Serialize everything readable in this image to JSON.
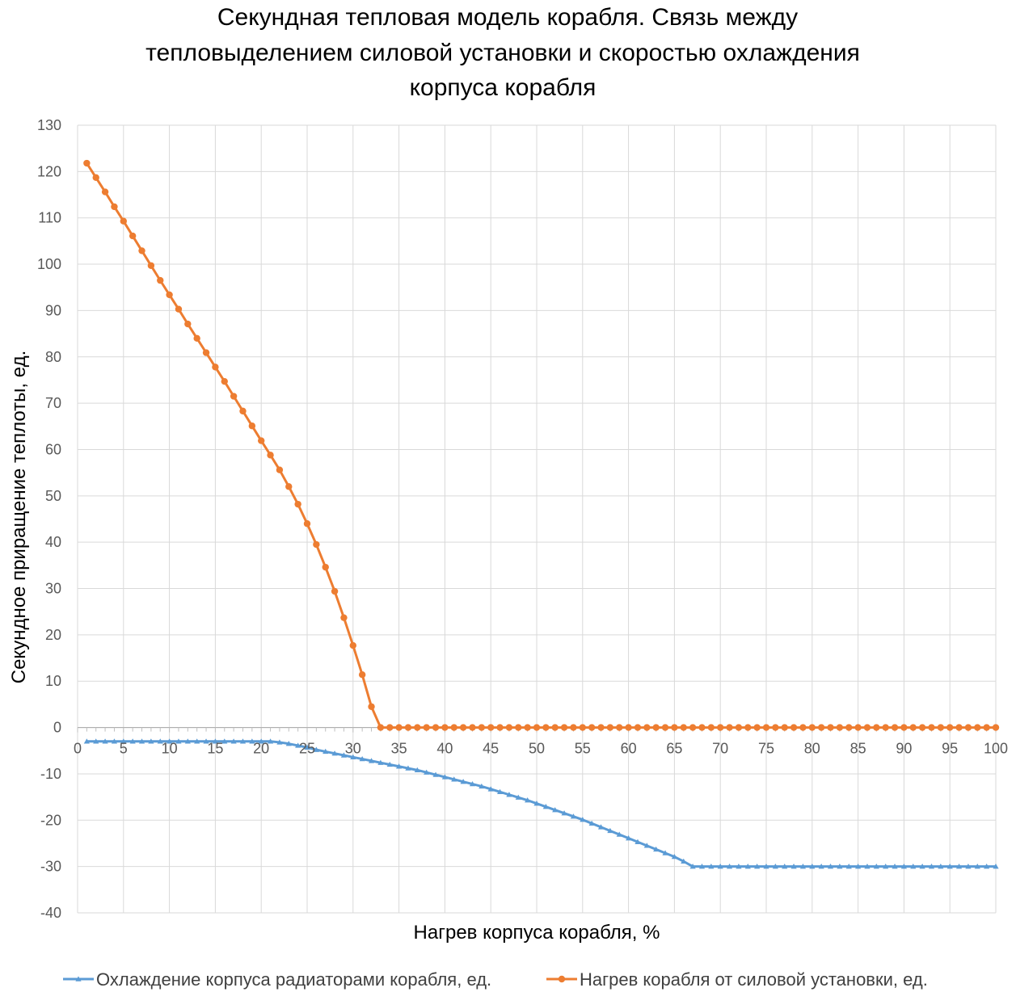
{
  "chart_data": {
    "type": "line",
    "title_lines": [
      "Секундная тепловая модель корабля. Связь между",
      "тепловыделением силовой установки и скоростью охлаждения",
      "корпуса корабля"
    ],
    "xlabel": "Нагрев корпуса корабля, %",
    "ylabel": "Секундное приращение теплоты, ед.",
    "xlim": [
      0,
      100
    ],
    "ylim": [
      -40,
      130
    ],
    "x_ticks": [
      0,
      5,
      10,
      15,
      20,
      25,
      30,
      35,
      40,
      45,
      50,
      55,
      60,
      65,
      70,
      75,
      80,
      85,
      90,
      95,
      100
    ],
    "y_ticks": [
      130,
      120,
      110,
      100,
      90,
      80,
      70,
      60,
      50,
      40,
      30,
      20,
      10,
      0,
      -10,
      -20,
      -30,
      -40
    ],
    "grid": true,
    "legend_position": "bottom",
    "series": [
      {
        "name": "Охлаждение корпуса радиаторами корабля, ед.",
        "color": "#5b9bd5",
        "marker": "triangle",
        "points": [
          [
            1,
            -3
          ],
          [
            2,
            -3
          ],
          [
            3,
            -3
          ],
          [
            4,
            -3
          ],
          [
            5,
            -3
          ],
          [
            6,
            -3
          ],
          [
            7,
            -3
          ],
          [
            8,
            -3
          ],
          [
            9,
            -3
          ],
          [
            10,
            -3
          ],
          [
            11,
            -3
          ],
          [
            12,
            -3
          ],
          [
            13,
            -3
          ],
          [
            14,
            -3
          ],
          [
            15,
            -3
          ],
          [
            16,
            -3
          ],
          [
            17,
            -3
          ],
          [
            18,
            -3
          ],
          [
            19,
            -3
          ],
          [
            20,
            -3
          ],
          [
            21,
            -3
          ],
          [
            22,
            -3.2
          ],
          [
            23,
            -3.5
          ],
          [
            24,
            -3.9
          ],
          [
            25,
            -4.3
          ],
          [
            26,
            -4.8
          ],
          [
            27,
            -5.2
          ],
          [
            28,
            -5.6
          ],
          [
            29,
            -6
          ],
          [
            30,
            -6.4
          ],
          [
            31,
            -6.8
          ],
          [
            32,
            -7.2
          ],
          [
            33,
            -7.6
          ],
          [
            34,
            -8
          ],
          [
            35,
            -8.4
          ],
          [
            36,
            -8.8
          ],
          [
            37,
            -9.2
          ],
          [
            38,
            -9.7
          ],
          [
            39,
            -10.2
          ],
          [
            40,
            -10.7
          ],
          [
            41,
            -11.2
          ],
          [
            42,
            -11.7
          ],
          [
            43,
            -12.2
          ],
          [
            44,
            -12.7
          ],
          [
            45,
            -13.3
          ],
          [
            46,
            -13.9
          ],
          [
            47,
            -14.5
          ],
          [
            48,
            -15.1
          ],
          [
            49,
            -15.7
          ],
          [
            50,
            -16.4
          ],
          [
            51,
            -17.1
          ],
          [
            52,
            -17.8
          ],
          [
            53,
            -18.5
          ],
          [
            54,
            -19.2
          ],
          [
            55,
            -19.9
          ],
          [
            56,
            -20.7
          ],
          [
            57,
            -21.5
          ],
          [
            58,
            -22.3
          ],
          [
            59,
            -23.1
          ],
          [
            60,
            -23.9
          ],
          [
            61,
            -24.7
          ],
          [
            62,
            -25.5
          ],
          [
            63,
            -26.3
          ],
          [
            64,
            -27.1
          ],
          [
            65,
            -27.9
          ],
          [
            66,
            -28.9
          ],
          [
            67,
            -30
          ],
          [
            68,
            -30
          ],
          [
            69,
            -30
          ],
          [
            70,
            -30
          ],
          [
            71,
            -30
          ],
          [
            72,
            -30
          ],
          [
            73,
            -30
          ],
          [
            74,
            -30
          ],
          [
            75,
            -30
          ],
          [
            76,
            -30
          ],
          [
            77,
            -30
          ],
          [
            78,
            -30
          ],
          [
            79,
            -30
          ],
          [
            80,
            -30
          ],
          [
            81,
            -30
          ],
          [
            82,
            -30
          ],
          [
            83,
            -30
          ],
          [
            84,
            -30
          ],
          [
            85,
            -30
          ],
          [
            86,
            -30
          ],
          [
            87,
            -30
          ],
          [
            88,
            -30
          ],
          [
            89,
            -30
          ],
          [
            90,
            -30
          ],
          [
            91,
            -30
          ],
          [
            92,
            -30
          ],
          [
            93,
            -30
          ],
          [
            94,
            -30
          ],
          [
            95,
            -30
          ],
          [
            96,
            -30
          ],
          [
            97,
            -30
          ],
          [
            98,
            -30
          ],
          [
            99,
            -30
          ],
          [
            100,
            -30
          ]
        ]
      },
      {
        "name": "Нагрев корабля от силовой установки, ед.",
        "color": "#ed7d31",
        "marker": "circle",
        "points": [
          [
            1,
            121.8
          ],
          [
            2,
            118.7
          ],
          [
            3,
            115.6
          ],
          [
            4,
            112.4
          ],
          [
            5,
            109.3
          ],
          [
            6,
            106.1
          ],
          [
            7,
            102.9
          ],
          [
            8,
            99.7
          ],
          [
            9,
            96.5
          ],
          [
            10,
            93.4
          ],
          [
            11,
            90.3
          ],
          [
            12,
            87.1
          ],
          [
            13,
            84
          ],
          [
            14,
            80.9
          ],
          [
            15,
            77.8
          ],
          [
            16,
            74.7
          ],
          [
            17,
            71.5
          ],
          [
            18,
            68.3
          ],
          [
            19,
            65.1
          ],
          [
            20,
            61.9
          ],
          [
            21,
            58.8
          ],
          [
            22,
            55.6
          ],
          [
            23,
            52
          ],
          [
            24,
            48.2
          ],
          [
            25,
            44
          ],
          [
            26,
            39.5
          ],
          [
            27,
            34.6
          ],
          [
            28,
            29.4
          ],
          [
            29,
            23.7
          ],
          [
            30,
            17.7
          ],
          [
            31,
            11.4
          ],
          [
            32,
            4.5
          ],
          [
            33,
            0
          ],
          [
            34,
            0
          ],
          [
            35,
            0
          ],
          [
            36,
            0
          ],
          [
            37,
            0
          ],
          [
            38,
            0
          ],
          [
            39,
            0
          ],
          [
            40,
            0
          ],
          [
            41,
            0
          ],
          [
            42,
            0
          ],
          [
            43,
            0
          ],
          [
            44,
            0
          ],
          [
            45,
            0
          ],
          [
            46,
            0
          ],
          [
            47,
            0
          ],
          [
            48,
            0
          ],
          [
            49,
            0
          ],
          [
            50,
            0
          ],
          [
            51,
            0
          ],
          [
            52,
            0
          ],
          [
            53,
            0
          ],
          [
            54,
            0
          ],
          [
            55,
            0
          ],
          [
            56,
            0
          ],
          [
            57,
            0
          ],
          [
            58,
            0
          ],
          [
            59,
            0
          ],
          [
            60,
            0
          ],
          [
            61,
            0
          ],
          [
            62,
            0
          ],
          [
            63,
            0
          ],
          [
            64,
            0
          ],
          [
            65,
            0
          ],
          [
            66,
            0
          ],
          [
            67,
            0
          ],
          [
            68,
            0
          ],
          [
            69,
            0
          ],
          [
            70,
            0
          ],
          [
            71,
            0
          ],
          [
            72,
            0
          ],
          [
            73,
            0
          ],
          [
            74,
            0
          ],
          [
            75,
            0
          ],
          [
            76,
            0
          ],
          [
            77,
            0
          ],
          [
            78,
            0
          ],
          [
            79,
            0
          ],
          [
            80,
            0
          ],
          [
            81,
            0
          ],
          [
            82,
            0
          ],
          [
            83,
            0
          ],
          [
            84,
            0
          ],
          [
            85,
            0
          ],
          [
            86,
            0
          ],
          [
            87,
            0
          ],
          [
            88,
            0
          ],
          [
            89,
            0
          ],
          [
            90,
            0
          ],
          [
            91,
            0
          ],
          [
            92,
            0
          ],
          [
            93,
            0
          ],
          [
            94,
            0
          ],
          [
            95,
            0
          ],
          [
            96,
            0
          ],
          [
            97,
            0
          ],
          [
            98,
            0
          ],
          [
            99,
            0
          ],
          [
            100,
            0
          ]
        ]
      }
    ]
  }
}
